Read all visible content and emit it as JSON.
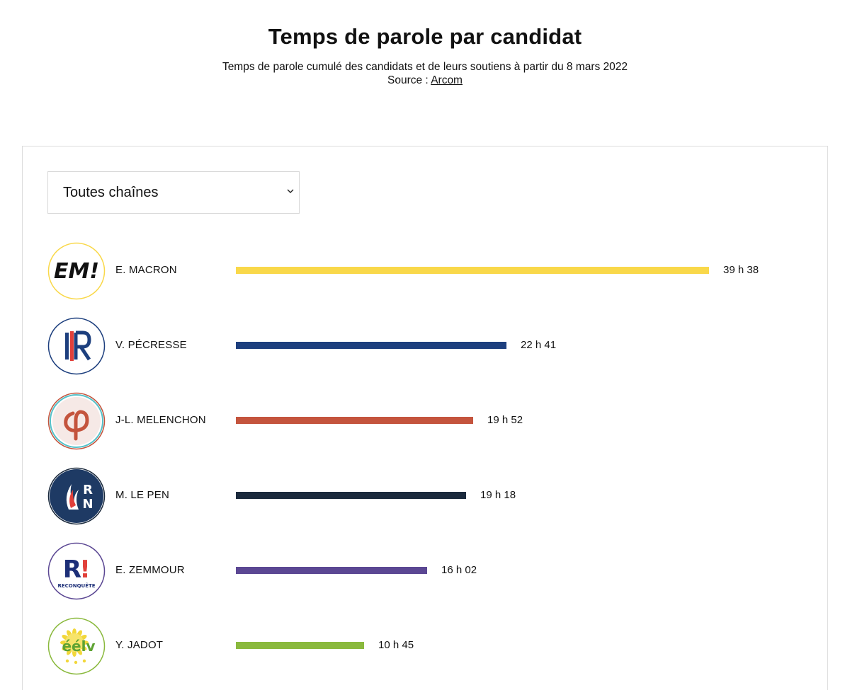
{
  "header": {
    "title": "Temps de parole par candidat",
    "subtitle": "Temps de parole cumulé des candidats et de leurs soutiens à partir du 8 mars 2022",
    "source_prefix": "Source : ",
    "source_link": "Arcom"
  },
  "filter": {
    "selected": "Toutes chaînes",
    "icon": "chevron-down-icon"
  },
  "chart_data": {
    "type": "bar",
    "orientation": "horizontal",
    "title": "Temps de parole par candidat",
    "categories": [
      "E. MACRON",
      "V. PÉCRESSE",
      "J-L. MELENCHON",
      "M. LE PEN",
      "E. ZEMMOUR",
      "Y. JADOT"
    ],
    "values_minutes": [
      2378,
      1361,
      1192,
      1158,
      962,
      645
    ],
    "labels": [
      "39 h 38",
      "22 h 41",
      "19 h 52",
      "19 h 18",
      "16 h 02",
      "10 h 45"
    ],
    "colors": [
      "#f9d84a",
      "#1d3f7e",
      "#c4543d",
      "#1b2a3d",
      "#5b4793",
      "#8ab93d"
    ],
    "logos": [
      "em-logo",
      "lr-logo",
      "lfi-logo",
      "rn-logo",
      "reconquete-logo",
      "eelv-logo"
    ],
    "logo_text": [
      "EM!",
      "",
      "",
      "R N",
      "R! RECONQUÊTE",
      "éélv"
    ]
  }
}
